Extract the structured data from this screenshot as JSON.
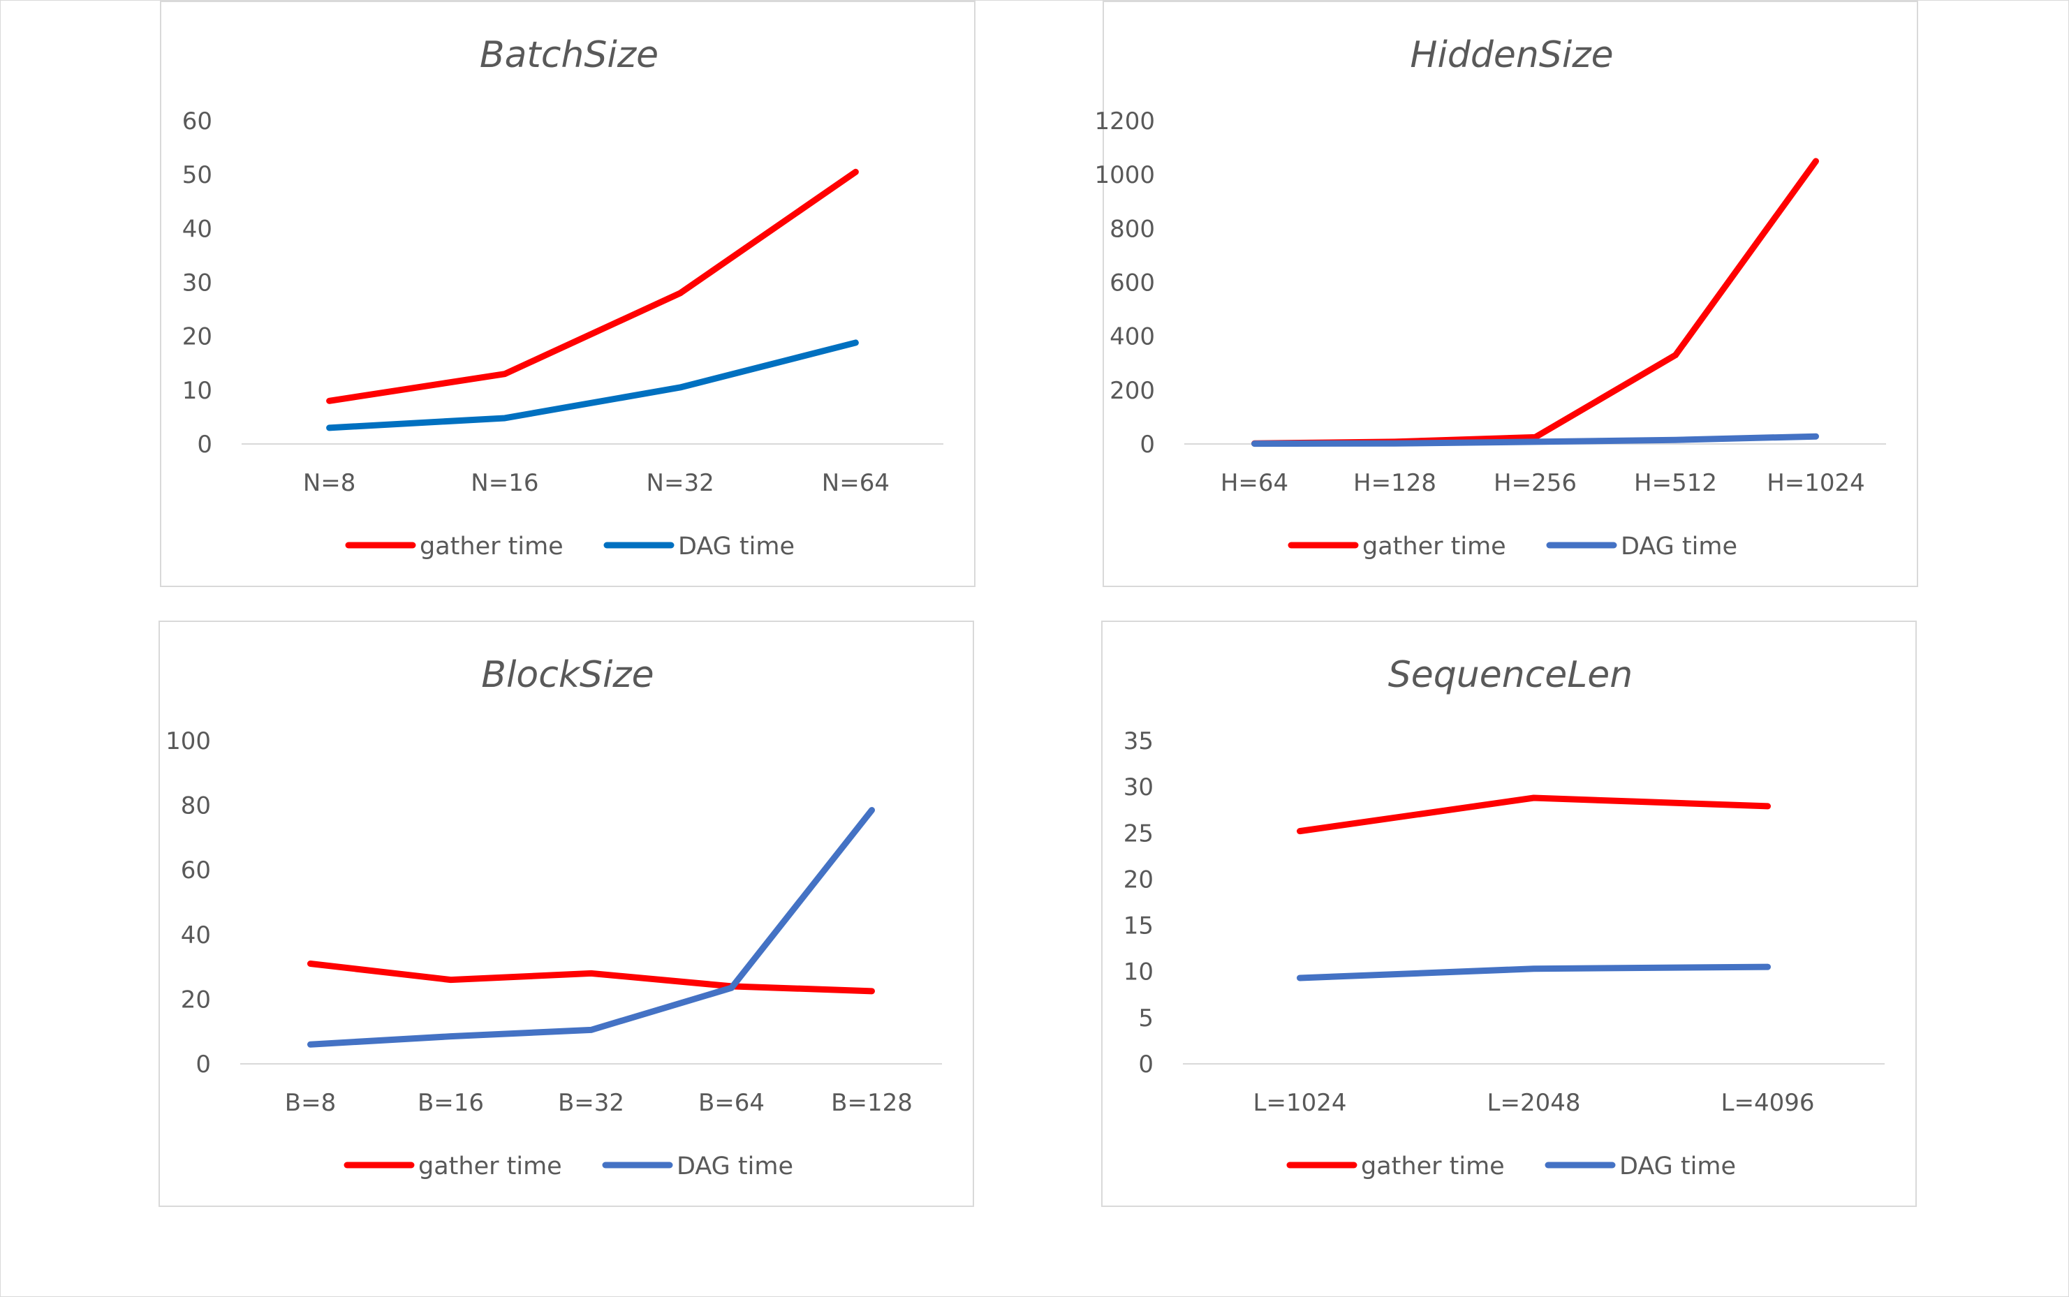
{
  "chart_data": [
    {
      "type": "line",
      "title": "BatchSize",
      "categories": [
        "N=8",
        "N=16",
        "N=32",
        "N=64"
      ],
      "ylim": [
        0,
        60
      ],
      "yticks": [
        0,
        10,
        20,
        30,
        40,
        50,
        60
      ],
      "series": [
        {
          "name": "gather time",
          "color": "#ff0000",
          "values": [
            8,
            13,
            28,
            50.5
          ]
        },
        {
          "name": "DAG time",
          "color": "#0070c0",
          "values": [
            3,
            4.8,
            10.5,
            18.8
          ]
        }
      ],
      "legend": "bottom",
      "grid": false
    },
    {
      "type": "line",
      "title": "HiddenSize",
      "categories": [
        "H=64",
        "H=128",
        "H=256",
        "H=512",
        "H=1024"
      ],
      "ylim": [
        0,
        1200
      ],
      "yticks": [
        0,
        200,
        400,
        600,
        800,
        1000,
        1200
      ],
      "series": [
        {
          "name": "gather time",
          "color": "#ff0000",
          "values": [
            2,
            8,
            25,
            330,
            1050
          ]
        },
        {
          "name": "DAG time",
          "color": "#4472c4",
          "values": [
            1,
            2,
            8,
            15,
            28
          ]
        }
      ],
      "legend": "bottom",
      "grid": false
    },
    {
      "type": "line",
      "title": "BlockSize",
      "categories": [
        "B=8",
        "B=16",
        "B=32",
        "B=64",
        "B=128"
      ],
      "ylim": [
        0,
        100
      ],
      "yticks": [
        0,
        20,
        40,
        60,
        80,
        100
      ],
      "series": [
        {
          "name": "gather time",
          "color": "#ff0000",
          "values": [
            31,
            26,
            28,
            24,
            22.5
          ]
        },
        {
          "name": "DAG time",
          "color": "#4472c4",
          "values": [
            6,
            8.5,
            10.5,
            23.5,
            78.5
          ]
        }
      ],
      "legend": "bottom",
      "grid": false
    },
    {
      "type": "line",
      "title": "SequenceLen",
      "categories": [
        "L=1024",
        "L=2048",
        "L=4096"
      ],
      "ylim": [
        0,
        35
      ],
      "yticks": [
        0,
        5,
        10,
        15,
        20,
        25,
        30,
        35
      ],
      "series": [
        {
          "name": "gather time",
          "color": "#ff0000",
          "values": [
            25.2,
            28.8,
            27.9
          ]
        },
        {
          "name": "DAG time",
          "color": "#4472c4",
          "values": [
            9.3,
            10.3,
            10.5
          ]
        }
      ],
      "legend": "bottom",
      "grid": false
    }
  ]
}
